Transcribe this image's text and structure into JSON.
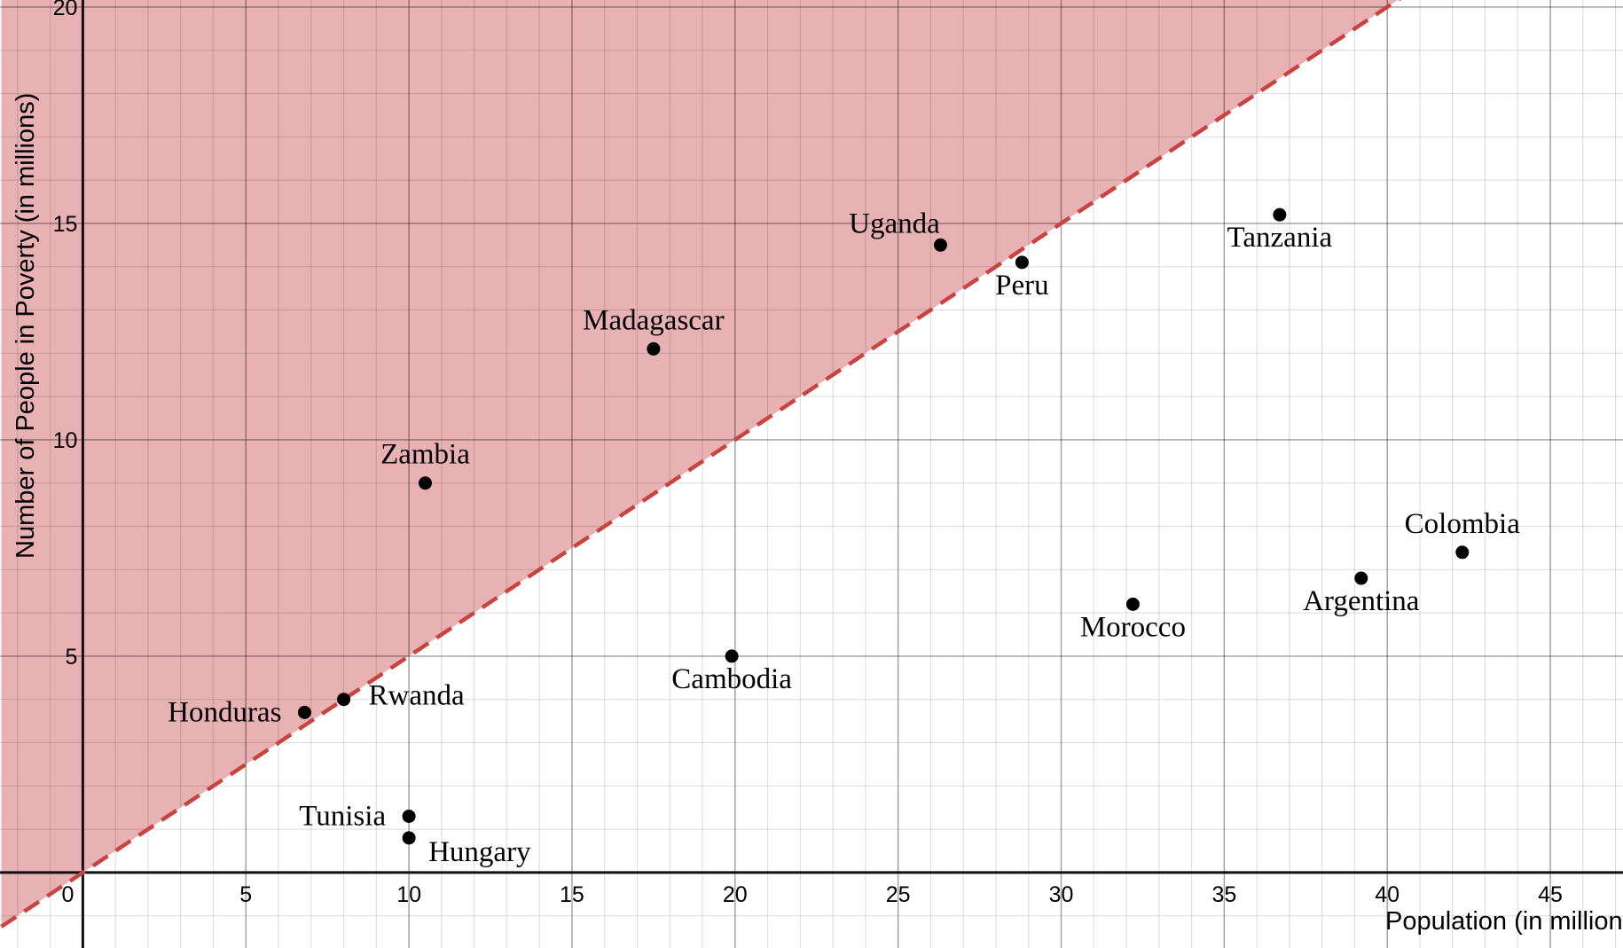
{
  "chart_data": {
    "type": "scatter",
    "title": "",
    "xlabel": "Population (in millions)",
    "ylabel": "Number of People in Poverty (in millions)",
    "xlim": [
      -2.5,
      47.2
    ],
    "ylim": [
      -1.75,
      20.1
    ],
    "x_ticks": [
      0,
      5,
      10,
      15,
      20,
      25,
      30,
      35,
      40,
      45
    ],
    "y_ticks": [
      5,
      10,
      15,
      20
    ],
    "origin_label": "0",
    "grid": true,
    "minor_grid_step": 1,
    "boundary_line": {
      "equation": "y = 0.5x",
      "slope": 0.5,
      "style": "dashed",
      "shaded": "above"
    },
    "colors": {
      "shade": "#e8b1b3",
      "line": "#c74440",
      "points": "#000000"
    },
    "points": [
      {
        "label": "Honduras",
        "x": 6.8,
        "y": 3.7,
        "label_position": "left"
      },
      {
        "label": "Rwanda",
        "x": 8.0,
        "y": 4.0,
        "label_position": "right"
      },
      {
        "label": "Tunisia",
        "x": 10.0,
        "y": 1.3,
        "label_position": "left"
      },
      {
        "label": "Hungary",
        "x": 10.0,
        "y": 0.8,
        "label_position": "below-right"
      },
      {
        "label": "Zambia",
        "x": 10.5,
        "y": 9.0,
        "label_position": "above"
      },
      {
        "label": "Madagascar",
        "x": 17.5,
        "y": 12.1,
        "label_position": "above"
      },
      {
        "label": "Cambodia",
        "x": 19.9,
        "y": 5.0,
        "label_position": "below"
      },
      {
        "label": "Uganda",
        "x": 26.3,
        "y": 14.5,
        "label_position": "above-left"
      },
      {
        "label": "Peru",
        "x": 28.8,
        "y": 14.1,
        "label_position": "below"
      },
      {
        "label": "Morocco",
        "x": 32.2,
        "y": 6.2,
        "label_position": "below"
      },
      {
        "label": "Tanzania",
        "x": 36.7,
        "y": 15.2,
        "label_position": "below"
      },
      {
        "label": "Argentina",
        "x": 39.2,
        "y": 6.8,
        "label_position": "below"
      },
      {
        "label": "Colombia",
        "x": 42.3,
        "y": 7.4,
        "label_position": "above"
      }
    ]
  }
}
